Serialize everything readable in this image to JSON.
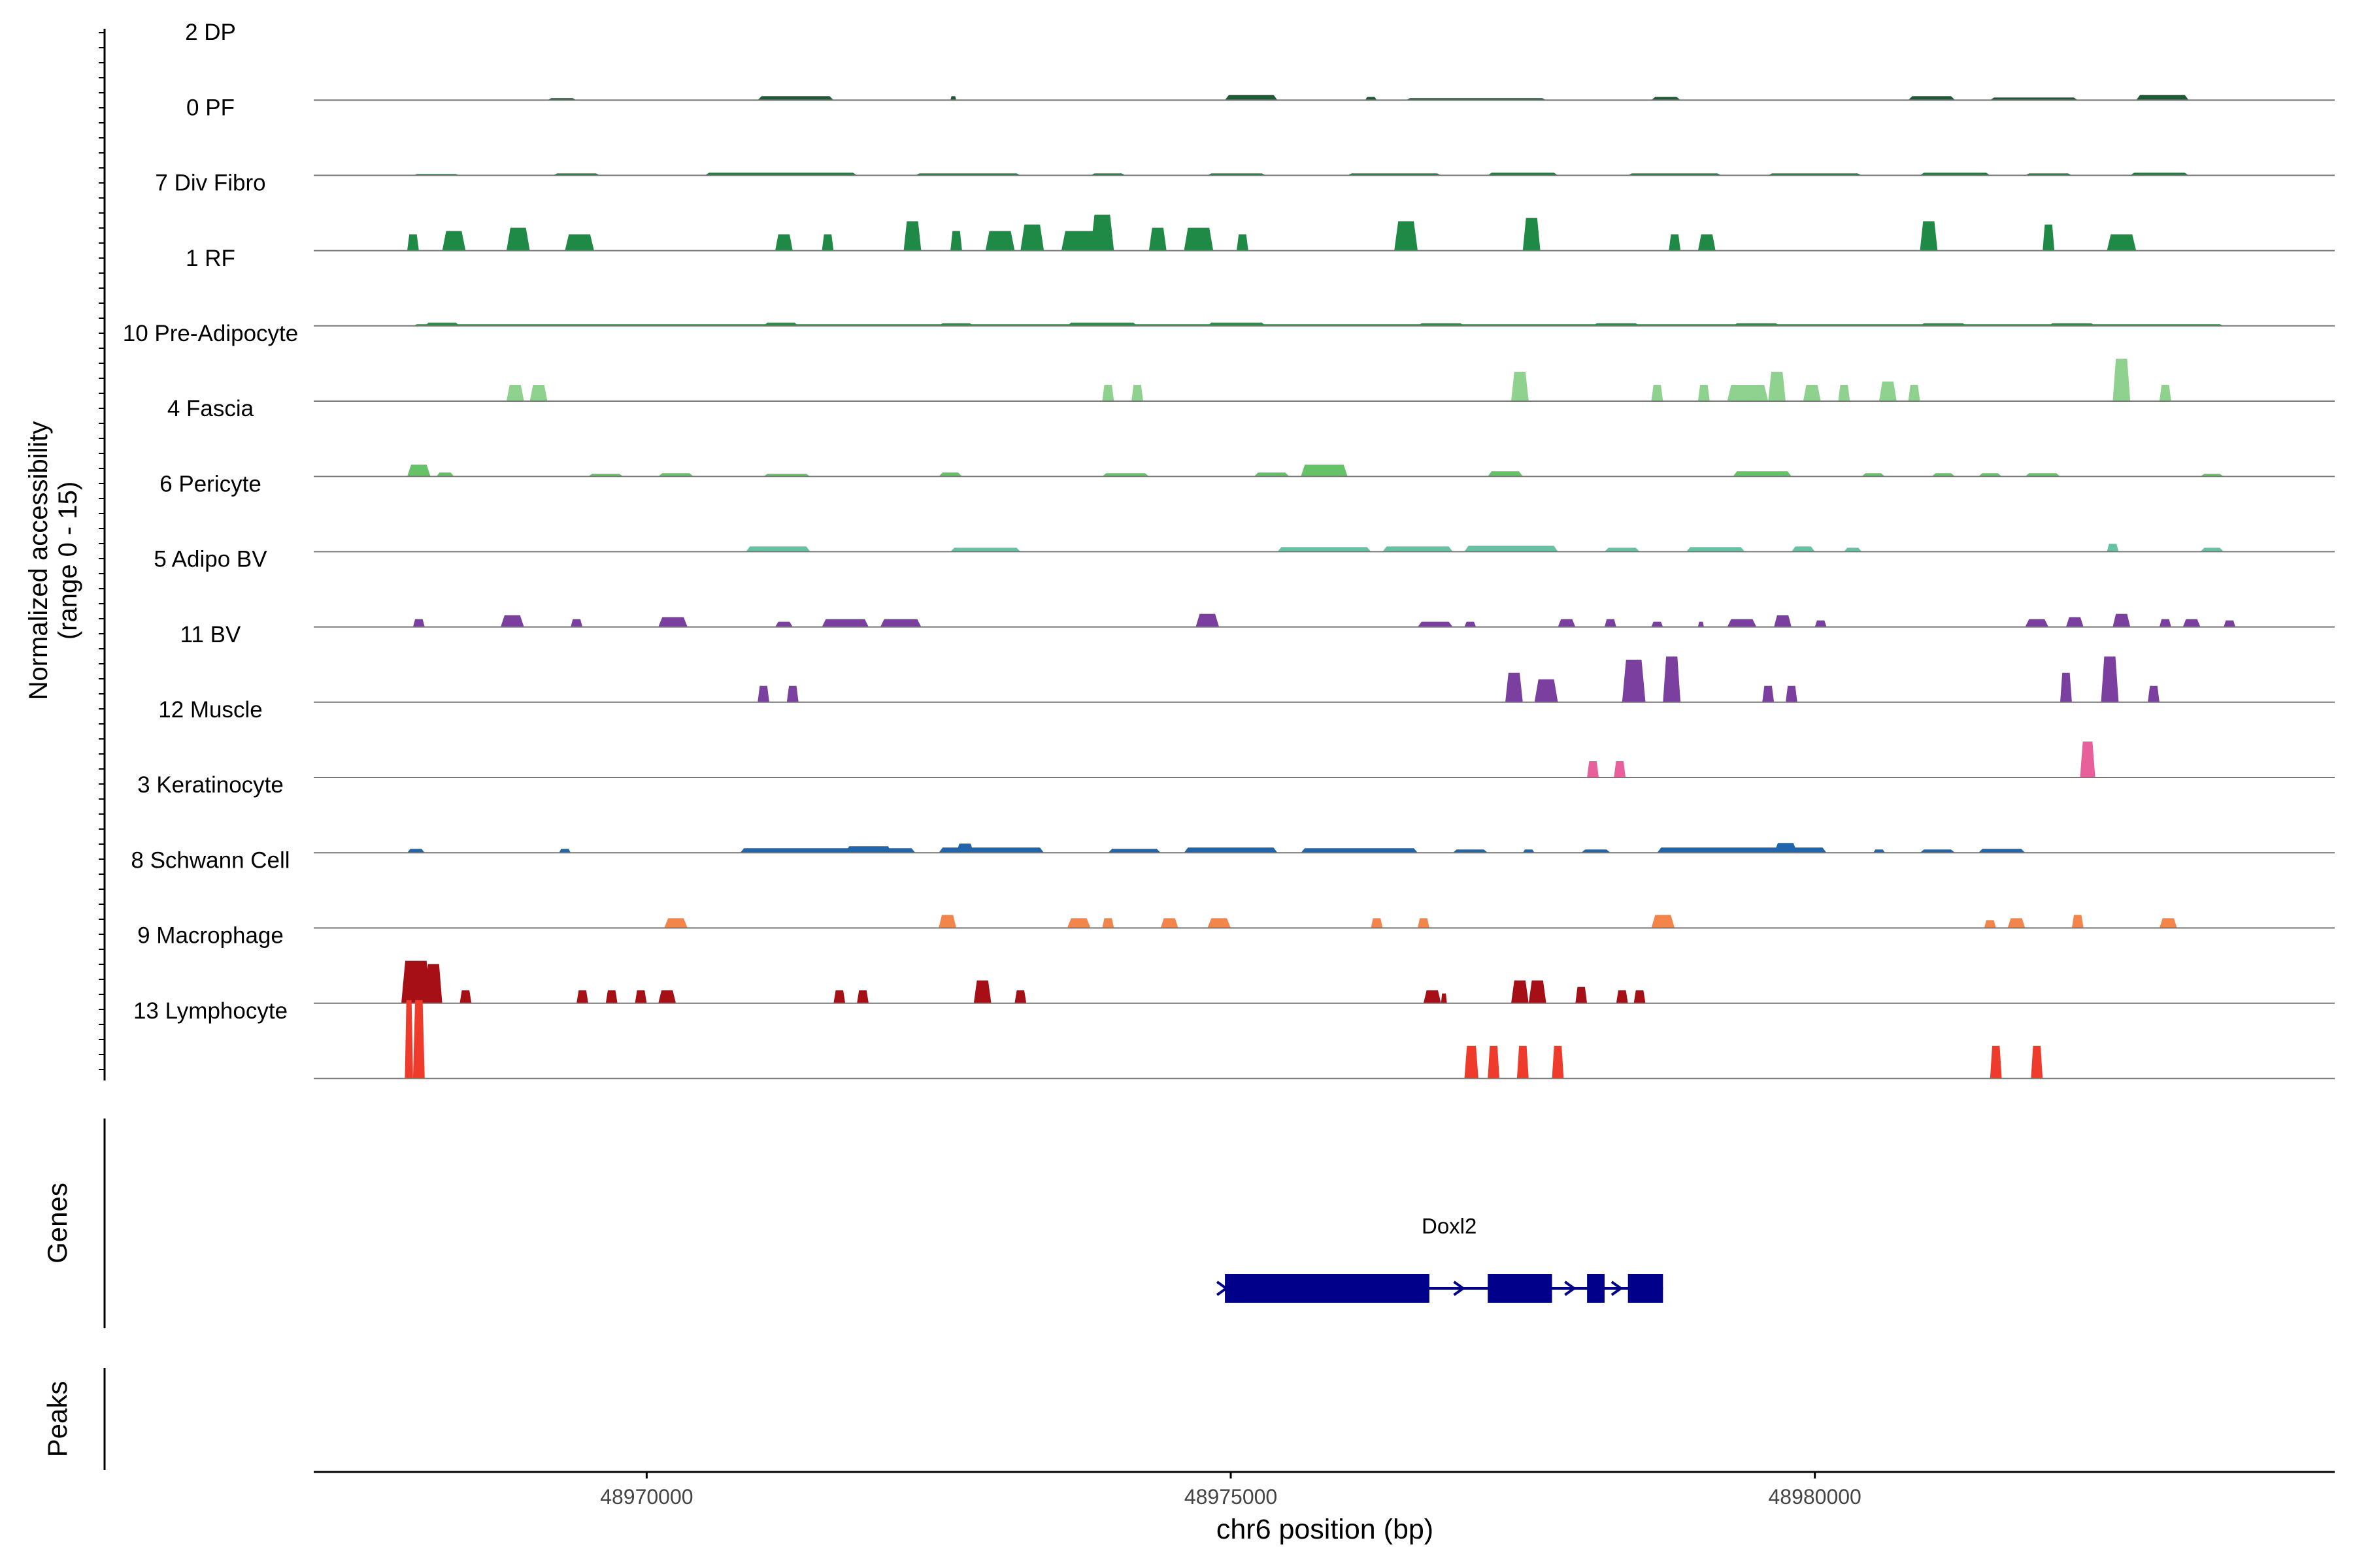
{
  "chart_data": {
    "type": "area",
    "subtype": "coverage-track",
    "ylabel_line1": "Normalized accessibility",
    "ylabel_line2": "(range 0 - 15)",
    "ylim": [
      0,
      15
    ],
    "xlabel": "chr6 position (bp)",
    "xlim": [
      48967150,
      48984450
    ],
    "xticks": [
      48970000,
      48975000,
      48980000
    ],
    "xtick_labels": [
      "48970000",
      "48975000",
      "48980000"
    ],
    "genes_label": "Genes",
    "peaks_label": "Peaks",
    "series": [
      {
        "name": "2 DP",
        "color": "#1e5b34",
        "peaks": [
          [
            48969150,
            48969400,
            0.3
          ],
          [
            48970950,
            48971600,
            0.6
          ],
          [
            48972600,
            48972650,
            0.6
          ],
          [
            48974950,
            48975400,
            0.8
          ],
          [
            48976150,
            48976250,
            0.5
          ],
          [
            48976500,
            48977700,
            0.3
          ],
          [
            48978600,
            48978850,
            0.5
          ],
          [
            48980800,
            48981200,
            0.6
          ],
          [
            48981500,
            48982250,
            0.4
          ],
          [
            48982750,
            48983200,
            0.8
          ]
        ]
      },
      {
        "name": "0 PF",
        "color": "#1e7a40",
        "peaks": [
          [
            48968000,
            48968400,
            0.2
          ],
          [
            48969200,
            48969600,
            0.3
          ],
          [
            48970500,
            48971800,
            0.4
          ],
          [
            48972300,
            48973200,
            0.3
          ],
          [
            48973800,
            48974100,
            0.3
          ],
          [
            48974800,
            48975300,
            0.3
          ],
          [
            48976000,
            48976800,
            0.3
          ],
          [
            48977200,
            48977800,
            0.4
          ],
          [
            48978400,
            48979200,
            0.3
          ],
          [
            48979600,
            48980400,
            0.3
          ],
          [
            48980900,
            48981500,
            0.4
          ],
          [
            48981800,
            48982200,
            0.3
          ],
          [
            48982700,
            48983200,
            0.4
          ]
        ]
      },
      {
        "name": "7 Div Fibro",
        "color": "#1e8a45",
        "peaks": [
          [
            48967950,
            48968050,
            2.5
          ],
          [
            48968250,
            48968450,
            3.0
          ],
          [
            48968800,
            48969000,
            3.5
          ],
          [
            48969300,
            48969550,
            2.5
          ],
          [
            48971100,
            48971250,
            2.5
          ],
          [
            48971500,
            48971600,
            2.5
          ],
          [
            48972200,
            48972350,
            4.5
          ],
          [
            48972600,
            48972700,
            3.0
          ],
          [
            48972900,
            48973150,
            3.0
          ],
          [
            48973200,
            48973400,
            4.0
          ],
          [
            48973550,
            48973950,
            3.0
          ],
          [
            48973800,
            48974000,
            5.5
          ],
          [
            48974300,
            48974450,
            3.5
          ],
          [
            48974600,
            48974850,
            3.5
          ],
          [
            48975050,
            48975150,
            2.5
          ],
          [
            48976400,
            48976600,
            4.5
          ],
          [
            48977500,
            48977650,
            5.0
          ],
          [
            48978750,
            48978850,
            2.5
          ],
          [
            48979000,
            48979150,
            2.5
          ],
          [
            48980900,
            48981050,
            4.5
          ],
          [
            48981950,
            48982050,
            4.0
          ],
          [
            48982500,
            48982750,
            2.5
          ]
        ]
      },
      {
        "name": "1 RF",
        "color": "#2e8b4a",
        "peaks": [
          [
            48968000,
            48983500,
            0.25
          ],
          [
            48968100,
            48968400,
            0.5
          ],
          [
            48971000,
            48971300,
            0.5
          ],
          [
            48972500,
            48972800,
            0.4
          ],
          [
            48973600,
            48974200,
            0.5
          ],
          [
            48974800,
            48975300,
            0.5
          ],
          [
            48976600,
            48977000,
            0.4
          ],
          [
            48978100,
            48978500,
            0.4
          ],
          [
            48979300,
            48979700,
            0.4
          ],
          [
            48980900,
            48981300,
            0.4
          ],
          [
            48982000,
            48982400,
            0.4
          ]
        ]
      },
      {
        "name": "10 Pre-Adipocyte",
        "color": "#8fd18f",
        "peaks": [
          [
            48968800,
            48968950,
            2.5
          ],
          [
            48969000,
            48969150,
            2.5
          ],
          [
            48973900,
            48974000,
            2.5
          ],
          [
            48974150,
            48974250,
            2.5
          ],
          [
            48977400,
            48977550,
            4.5
          ],
          [
            48978600,
            48978700,
            2.5
          ],
          [
            48979000,
            48979100,
            2.5
          ],
          [
            48979250,
            48979600,
            2.5
          ],
          [
            48979600,
            48979750,
            4.5
          ],
          [
            48979900,
            48980050,
            2.5
          ],
          [
            48980200,
            48980300,
            2.5
          ],
          [
            48980550,
            48980700,
            3.0
          ],
          [
            48980800,
            48980900,
            2.5
          ],
          [
            48982550,
            48982700,
            6.5
          ],
          [
            48982950,
            48983050,
            2.5
          ]
        ]
      },
      {
        "name": "4 Fascia",
        "color": "#66c266",
        "peaks": [
          [
            48967950,
            48968150,
            1.8
          ],
          [
            48968200,
            48968350,
            0.6
          ],
          [
            48969500,
            48969800,
            0.4
          ],
          [
            48970100,
            48970400,
            0.5
          ],
          [
            48971000,
            48971400,
            0.4
          ],
          [
            48972500,
            48972700,
            0.6
          ],
          [
            48973900,
            48974300,
            0.5
          ],
          [
            48975200,
            48975500,
            0.6
          ],
          [
            48975600,
            48976000,
            1.8
          ],
          [
            48977200,
            48977500,
            0.8
          ],
          [
            48979300,
            48979800,
            0.8
          ],
          [
            48980400,
            48980600,
            0.5
          ],
          [
            48981000,
            48981200,
            0.5
          ],
          [
            48981400,
            48981600,
            0.5
          ],
          [
            48981800,
            48982100,
            0.5
          ],
          [
            48983300,
            48983500,
            0.4
          ]
        ]
      },
      {
        "name": "6 Pericyte",
        "color": "#66c2a5",
        "peaks": [
          [
            48970850,
            48971400,
            0.8
          ],
          [
            48972600,
            48973200,
            0.6
          ],
          [
            48975400,
            48976200,
            0.7
          ],
          [
            48976300,
            48976900,
            0.8
          ],
          [
            48977000,
            48977800,
            0.9
          ],
          [
            48978200,
            48978500,
            0.6
          ],
          [
            48978900,
            48979400,
            0.7
          ],
          [
            48979800,
            48980000,
            0.8
          ],
          [
            48980250,
            48980400,
            0.6
          ],
          [
            48982500,
            48982600,
            1.2
          ],
          [
            48983300,
            48983500,
            0.6
          ]
        ]
      },
      {
        "name": "5 Adipo BV",
        "color": "#7b3fa0",
        "peaks": [
          [
            48968000,
            48968100,
            1.2
          ],
          [
            48968750,
            48968950,
            1.8
          ],
          [
            48969350,
            48969450,
            1.2
          ],
          [
            48970100,
            48970350,
            1.5
          ],
          [
            48971100,
            48971250,
            0.8
          ],
          [
            48971500,
            48971900,
            1.2
          ],
          [
            48972000,
            48972350,
            1.2
          ],
          [
            48974700,
            48974900,
            2.0
          ],
          [
            48976600,
            48976900,
            0.8
          ],
          [
            48977000,
            48977100,
            0.8
          ],
          [
            48977800,
            48977950,
            1.2
          ],
          [
            48978200,
            48978300,
            1.2
          ],
          [
            48978600,
            48978700,
            0.8
          ],
          [
            48979000,
            48979050,
            0.8
          ],
          [
            48979250,
            48979500,
            1.2
          ],
          [
            48979650,
            48979800,
            1.8
          ],
          [
            48980000,
            48980100,
            1.0
          ],
          [
            48981800,
            48982000,
            1.2
          ],
          [
            48982150,
            48982300,
            1.5
          ],
          [
            48982550,
            48982700,
            2.0
          ],
          [
            48982950,
            48983050,
            1.2
          ],
          [
            48983150,
            48983300,
            1.2
          ],
          [
            48983500,
            48983600,
            1.0
          ]
        ]
      },
      {
        "name": "11 BV",
        "color": "#7b3fa0",
        "peaks": [
          [
            48970950,
            48971050,
            2.5
          ],
          [
            48971200,
            48971300,
            2.5
          ],
          [
            48977350,
            48977500,
            4.5
          ],
          [
            48977600,
            48977800,
            3.5
          ],
          [
            48978350,
            48978550,
            6.5
          ],
          [
            48978700,
            48978850,
            7.0
          ],
          [
            48979550,
            48979650,
            2.5
          ],
          [
            48979750,
            48979850,
            2.5
          ],
          [
            48982100,
            48982200,
            4.5
          ],
          [
            48982450,
            48982600,
            7.0
          ],
          [
            48982850,
            48982950,
            2.5
          ]
        ]
      },
      {
        "name": "12 Muscle",
        "color": "#e7609c",
        "peaks": [
          [
            48978050,
            48978150,
            2.5
          ],
          [
            48978280,
            48978380,
            2.5
          ],
          [
            48982270,
            48982400,
            5.5
          ]
        ]
      },
      {
        "name": "3 Keratinocyte",
        "color": "#2166ac",
        "peaks": [
          [
            48967950,
            48968100,
            0.6
          ],
          [
            48969250,
            48969350,
            0.6
          ],
          [
            48970800,
            48972300,
            0.7
          ],
          [
            48971700,
            48972100,
            1.0
          ],
          [
            48972500,
            48973400,
            0.8
          ],
          [
            48972650,
            48972800,
            1.4
          ],
          [
            48973950,
            48974400,
            0.6
          ],
          [
            48974600,
            48975400,
            0.8
          ],
          [
            48975600,
            48976600,
            0.7
          ],
          [
            48976900,
            48977200,
            0.5
          ],
          [
            48977500,
            48977600,
            0.5
          ],
          [
            48978000,
            48978250,
            0.5
          ],
          [
            48978650,
            48980100,
            0.8
          ],
          [
            48979650,
            48979850,
            1.5
          ],
          [
            48980500,
            48980600,
            0.5
          ],
          [
            48980900,
            48981200,
            0.5
          ],
          [
            48981400,
            48981800,
            0.6
          ]
        ]
      },
      {
        "name": "8 Schwann Cell",
        "color": "#f4854a",
        "peaks": [
          [
            48970150,
            48970350,
            1.5
          ],
          [
            48972500,
            48972650,
            2.0
          ],
          [
            48973600,
            48973800,
            1.5
          ],
          [
            48973900,
            48974000,
            1.5
          ],
          [
            48974400,
            48974550,
            1.5
          ],
          [
            48974800,
            48975000,
            1.5
          ],
          [
            48976200,
            48976300,
            1.5
          ],
          [
            48976600,
            48976700,
            1.5
          ],
          [
            48978600,
            48978800,
            2.0
          ],
          [
            48981450,
            48981550,
            1.2
          ],
          [
            48981650,
            48981800,
            1.5
          ],
          [
            48982200,
            48982300,
            2.0
          ],
          [
            48982950,
            48983100,
            1.5
          ]
        ]
      },
      {
        "name": "9 Macrophage",
        "color": "#a50f15",
        "peaks": [
          [
            48967900,
            48968150,
            6.5
          ],
          [
            48968100,
            48968250,
            6.0
          ],
          [
            48968400,
            48968500,
            2.0
          ],
          [
            48969400,
            48969500,
            2.0
          ],
          [
            48969650,
            48969750,
            2.0
          ],
          [
            48969900,
            48970000,
            2.0
          ],
          [
            48970100,
            48970250,
            2.0
          ],
          [
            48971600,
            48971700,
            2.0
          ],
          [
            48971800,
            48971900,
            2.0
          ],
          [
            48972800,
            48972950,
            3.5
          ],
          [
            48973150,
            48973250,
            2.0
          ],
          [
            48976650,
            48976800,
            2.0
          ],
          [
            48976800,
            48976850,
            1.5
          ],
          [
            48977400,
            48977550,
            3.5
          ],
          [
            48977550,
            48977700,
            3.5
          ],
          [
            48977950,
            48978050,
            2.5
          ],
          [
            48978300,
            48978400,
            2.0
          ],
          [
            48978450,
            48978550,
            2.0
          ]
        ]
      },
      {
        "name": "13 Lymphocyte",
        "color": "#ef3b2c",
        "peaks": [
          [
            48967930,
            48968000,
            12.0
          ],
          [
            48968000,
            48968100,
            12.0
          ],
          [
            48977000,
            48977120,
            5.0
          ],
          [
            48977200,
            48977300,
            5.0
          ],
          [
            48977450,
            48977550,
            5.0
          ],
          [
            48977750,
            48977850,
            5.0
          ],
          [
            48981500,
            48981600,
            5.0
          ],
          [
            48981850,
            48981950,
            5.0
          ]
        ]
      }
    ],
    "gene": {
      "name": "Doxl2",
      "color": "#00008b",
      "strand": "+",
      "start": 48974950,
      "end": 48978700,
      "exons": [
        [
          48974950,
          48976700
        ],
        [
          48977200,
          48977750
        ],
        [
          48978050,
          48978200
        ],
        [
          48978400,
          48978700
        ]
      ]
    }
  }
}
